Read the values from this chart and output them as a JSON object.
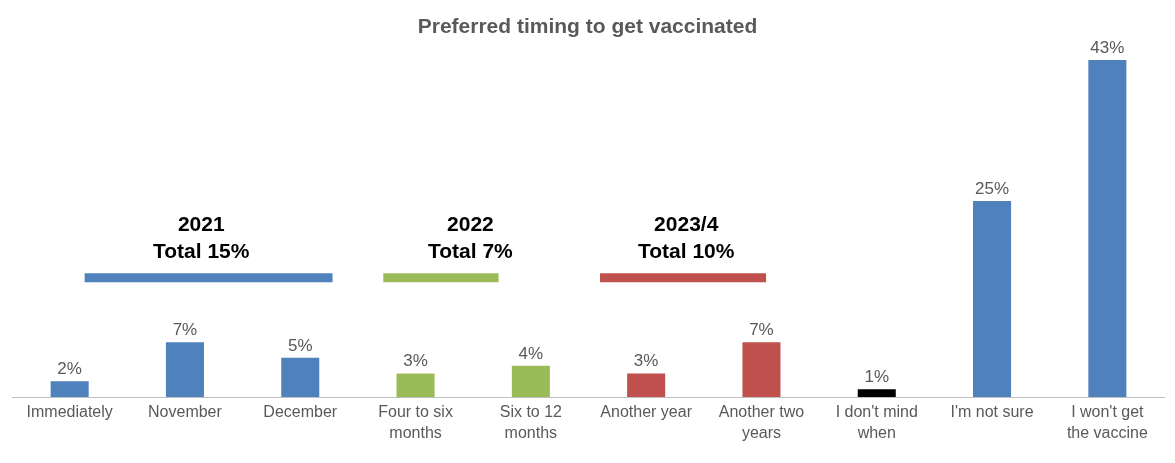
{
  "chart_data": {
    "type": "bar",
    "title": "Preferred timing to get vaccinated",
    "categories": [
      "Immediately",
      "November",
      "December",
      "Four to six months",
      "Six to 12 months",
      "Another year",
      "Another two years",
      "I don't mind when",
      "I'm not sure",
      "I won't get the vaccine"
    ],
    "values": [
      2,
      7,
      5,
      3,
      4,
      3,
      7,
      1,
      25,
      43
    ],
    "colors": [
      "#4f81bd",
      "#4f81bd",
      "#4f81bd",
      "#9bbb59",
      "#9bbb59",
      "#c0504d",
      "#c0504d",
      "#000000",
      "#4f81bd",
      "#4f81bd"
    ],
    "value_labels": [
      "2%",
      "7%",
      "5%",
      "3%",
      "4%",
      "3%",
      "7%",
      "1%",
      "25%",
      "43%"
    ],
    "annotations": [
      "2021\nTotal 15%",
      "2022\nTotal 7%",
      "2023/4\nTotal 10%"
    ]
  }
}
